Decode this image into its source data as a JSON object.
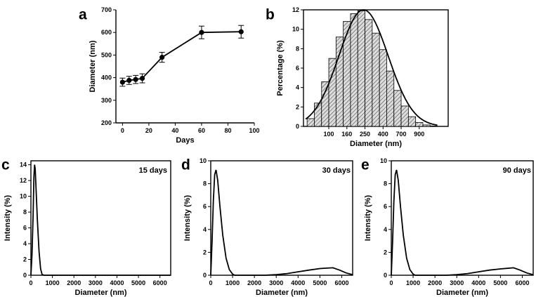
{
  "chart_data": [
    {
      "id": "a",
      "panel_label": "a",
      "type": "line",
      "xlabel": "Days",
      "ylabel": "Diameter (nm)",
      "xlim": [
        -5,
        100
      ],
      "ylim": [
        200,
        700
      ],
      "xticks": [
        0,
        20,
        40,
        60,
        80,
        100
      ],
      "yticks": [
        200,
        300,
        400,
        500,
        600,
        700
      ],
      "x": [
        0,
        5,
        10,
        15,
        30,
        60,
        90
      ],
      "y": [
        380,
        388,
        392,
        397,
        490,
        600,
        603
      ],
      "yerr": [
        18,
        18,
        18,
        20,
        22,
        28,
        28
      ]
    },
    {
      "id": "b",
      "panel_label": "b",
      "type": "bar",
      "xlabel": "Diameter (nm)",
      "ylabel": "Percentage (%)",
      "ylim": [
        0,
        12
      ],
      "yticks": [
        0,
        2,
        4,
        6,
        8,
        10,
        12
      ],
      "xticks": [
        "100",
        "160",
        "250",
        "400",
        "700",
        "900"
      ],
      "bin_range": [
        0,
        20
      ],
      "bins": [
        1,
        2,
        3,
        4,
        5,
        6,
        7,
        8,
        9,
        10,
        11,
        12,
        13,
        14,
        15,
        16,
        17,
        18,
        19
      ],
      "values": [
        0.8,
        2.4,
        4.6,
        7.0,
        9.2,
        10.8,
        11.6,
        11.9,
        11.0,
        9.6,
        7.9,
        5.7,
        3.7,
        2.1,
        1.0,
        0.4,
        0.15,
        0.05,
        0.0
      ],
      "fit": "gaussian",
      "fit_peak": 12.0,
      "fit_center": 8.3,
      "fit_sigma": 3.4
    },
    {
      "id": "c",
      "panel_label": "c",
      "type": "line",
      "annotation": "15 days",
      "xlabel": "Diameter (nm)",
      "ylabel": "Intensity (%)",
      "xlim": [
        0,
        6500
      ],
      "ylim": [
        0,
        14.5
      ],
      "xticks": [
        0,
        1000,
        2000,
        3000,
        4000,
        5000,
        6000
      ],
      "yticks": [
        0,
        2,
        4,
        6,
        8,
        10,
        12,
        14
      ],
      "x": [
        0,
        50,
        100,
        140,
        170,
        200,
        240,
        300,
        380,
        450,
        520,
        600,
        700,
        1000,
        6500
      ],
      "y": [
        0,
        2.5,
        7.5,
        12.5,
        14.0,
        13.5,
        11.0,
        7.0,
        3.0,
        0.8,
        0.1,
        0,
        0,
        0,
        0
      ]
    },
    {
      "id": "d",
      "panel_label": "d",
      "type": "line",
      "annotation": "30 days",
      "xlabel": "Diameter (nm)",
      "ylabel": "Intensity (%)",
      "xlim": [
        0,
        6500
      ],
      "ylim": [
        0,
        10
      ],
      "xticks": [
        0,
        1000,
        2000,
        3000,
        4000,
        5000,
        6000
      ],
      "yticks": [
        0,
        2,
        4,
        6,
        8,
        10
      ],
      "x": [
        0,
        60,
        120,
        180,
        240,
        320,
        420,
        550,
        700,
        850,
        1000,
        1100,
        2000,
        2500,
        3000,
        3500,
        4000,
        4500,
        5000,
        5300,
        5600,
        5900,
        6200,
        6500
      ],
      "y": [
        0,
        3.0,
        6.5,
        8.8,
        9.2,
        8.3,
        6.0,
        3.5,
        1.5,
        0.5,
        0.1,
        0,
        0,
        0,
        0.05,
        0.15,
        0.3,
        0.45,
        0.58,
        0.62,
        0.65,
        0.45,
        0.2,
        0.05
      ]
    },
    {
      "id": "e",
      "panel_label": "e",
      "type": "line",
      "annotation": "90 days",
      "xlabel": "Diameter (nm)",
      "ylabel": "Intensity (%)",
      "xlim": [
        0,
        6500
      ],
      "ylim": [
        0,
        10
      ],
      "xticks": [
        0,
        1000,
        2000,
        3000,
        4000,
        5000,
        6000
      ],
      "yticks": [
        0,
        2,
        4,
        6,
        8,
        10
      ],
      "x": [
        0,
        60,
        120,
        180,
        240,
        320,
        420,
        550,
        700,
        850,
        1000,
        1100,
        2000,
        2500,
        3000,
        3500,
        4000,
        4500,
        5000,
        5300,
        5600,
        5900,
        6200,
        6500
      ],
      "y": [
        0,
        3.0,
        6.5,
        8.8,
        9.2,
        8.3,
        6.0,
        3.5,
        1.5,
        0.5,
        0.1,
        0,
        0,
        0,
        0.05,
        0.15,
        0.3,
        0.45,
        0.55,
        0.6,
        0.65,
        0.45,
        0.2,
        0.05
      ]
    }
  ]
}
